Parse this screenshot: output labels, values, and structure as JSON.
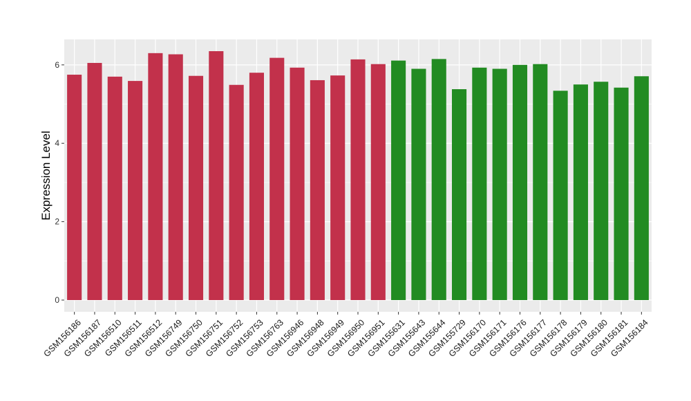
{
  "chart_data": {
    "type": "bar",
    "title": "",
    "xlabel": "",
    "ylabel": "Expression Level",
    "ylim": [
      -0.3,
      6.65
    ],
    "yticks": [
      0,
      2,
      4,
      6
    ],
    "grid": true,
    "colors": {
      "panel": "#ebebeb",
      "grid": "#ffffff",
      "group_a": "#c2314b",
      "group_b": "#228b22"
    },
    "categories": [
      "GSM156186",
      "GSM156187",
      "GSM156510",
      "GSM156511",
      "GSM156512",
      "GSM156749",
      "GSM156750",
      "GSM156751",
      "GSM156752",
      "GSM156753",
      "GSM156763",
      "GSM156946",
      "GSM156948",
      "GSM156949",
      "GSM156950",
      "GSM156951",
      "GSM155631",
      "GSM155643",
      "GSM155644",
      "GSM155729",
      "GSM156170",
      "GSM156171",
      "GSM156176",
      "GSM156177",
      "GSM156178",
      "GSM156179",
      "GSM156180",
      "GSM156181",
      "GSM156184"
    ],
    "values": [
      5.75,
      6.05,
      5.7,
      5.59,
      6.3,
      6.27,
      5.72,
      6.35,
      5.49,
      5.8,
      6.18,
      5.93,
      5.61,
      5.73,
      6.14,
      6.02,
      6.11,
      5.9,
      6.15,
      5.38,
      5.93,
      5.9,
      6.0,
      6.02,
      5.34,
      5.5,
      5.57,
      5.42,
      5.71
    ],
    "groups": [
      "a",
      "a",
      "a",
      "a",
      "a",
      "a",
      "a",
      "a",
      "a",
      "a",
      "a",
      "a",
      "a",
      "a",
      "a",
      "a",
      "b",
      "b",
      "b",
      "b",
      "b",
      "b",
      "b",
      "b",
      "b",
      "b",
      "b",
      "b",
      "b"
    ]
  }
}
